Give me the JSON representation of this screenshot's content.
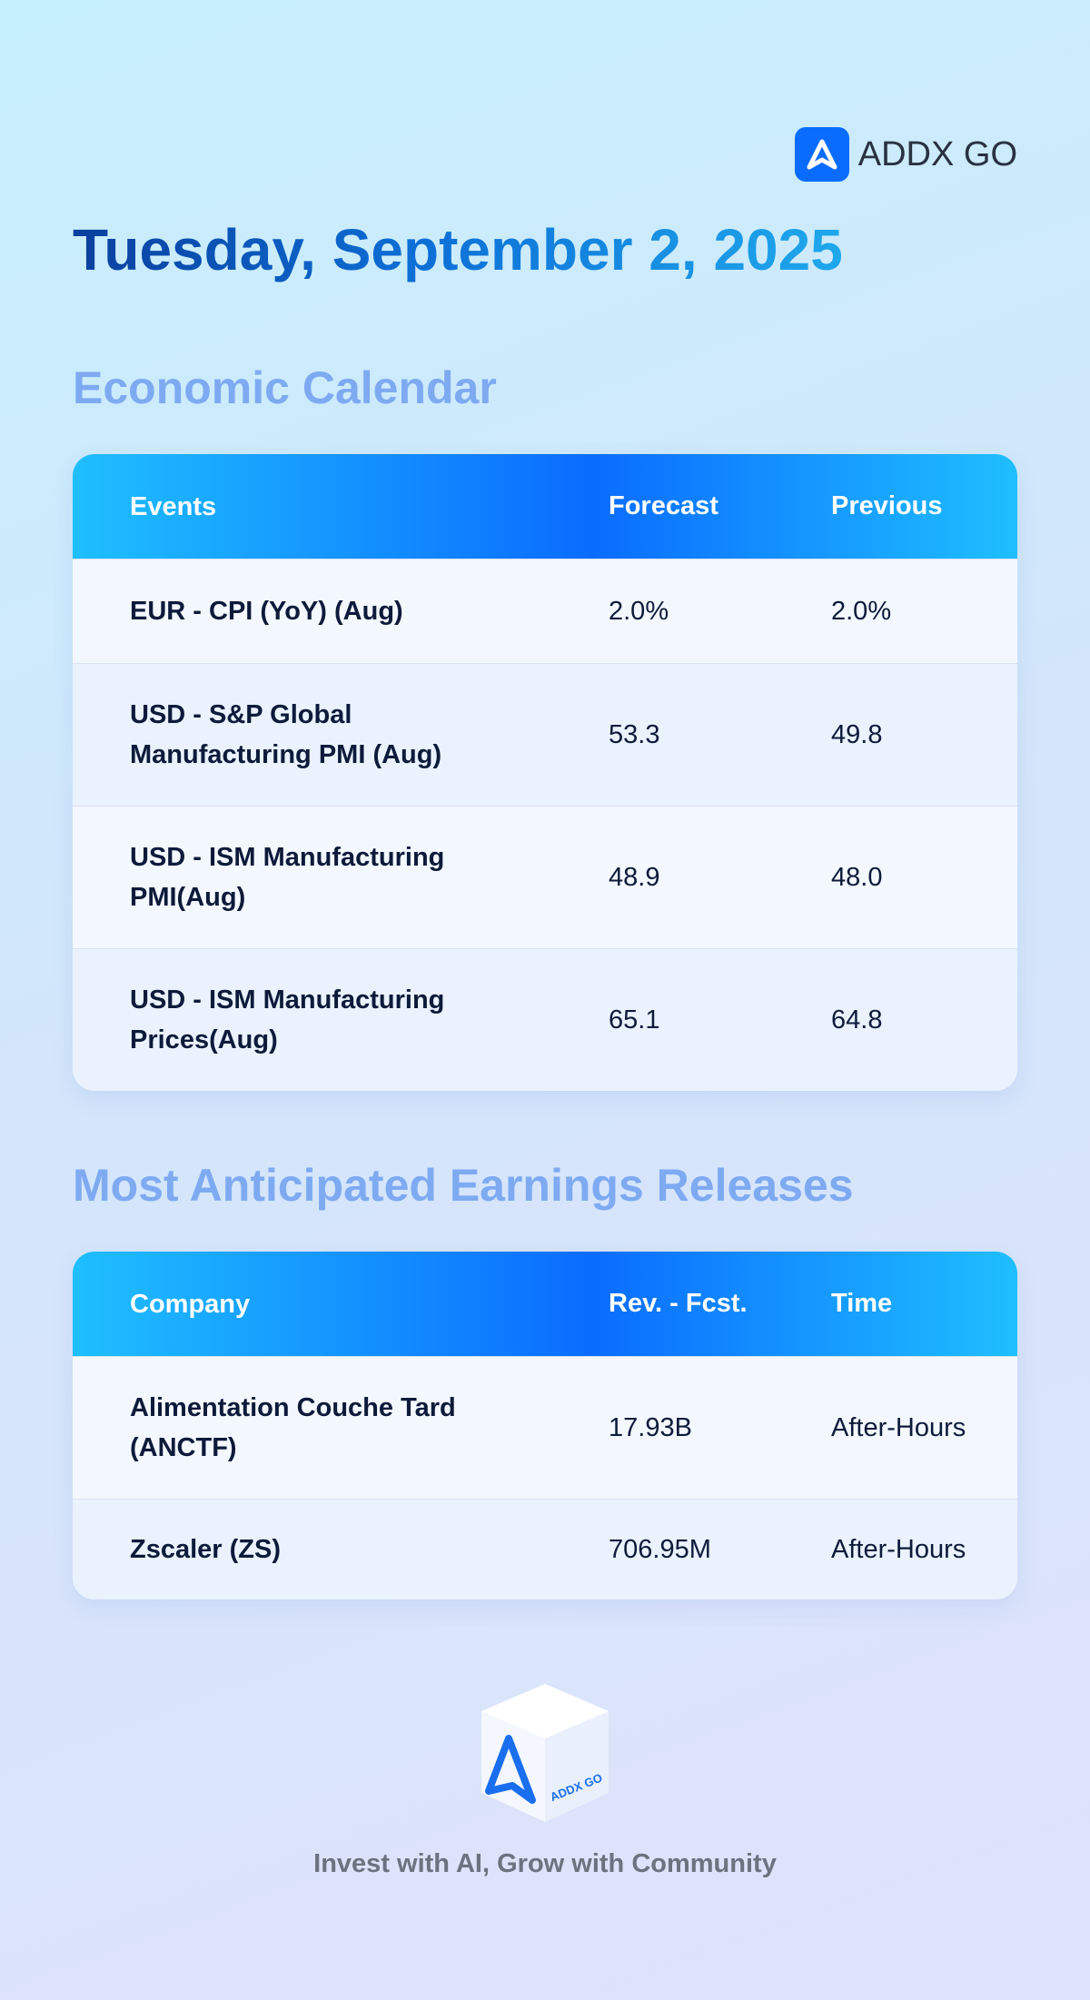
{
  "header": {
    "brand": "ADDX GO",
    "date": "Tuesday, September 2, 2025"
  },
  "economic_calendar": {
    "title": "Economic Calendar",
    "columns": [
      "Events",
      "Forecast",
      "Previous"
    ],
    "rows": [
      [
        "EUR - CPI (YoY) (Aug)",
        "2.0%",
        "2.0%"
      ],
      [
        "USD - S&P Global Manufacturing PMI (Aug)",
        "53.3",
        "49.8"
      ],
      [
        "USD - ISM Manufacturing PMI(Aug)",
        "48.9",
        "48.0"
      ],
      [
        "USD - ISM Manufacturing Prices(Aug)",
        "65.1",
        "64.8"
      ]
    ]
  },
  "earnings": {
    "title": "Most Anticipated Earnings Releases",
    "columns": [
      "Company",
      "Rev. - Fcst.",
      "Time"
    ],
    "rows": [
      [
        "Alimentation Couche Tard (ANCTF)",
        "17.93B",
        "After-Hours"
      ],
      [
        "Zscaler (ZS)",
        "706.95M",
        "After-Hours"
      ]
    ]
  },
  "footer": {
    "logo_text": "ADDX GO",
    "tagline": "Invest with AI, Grow with Community"
  }
}
